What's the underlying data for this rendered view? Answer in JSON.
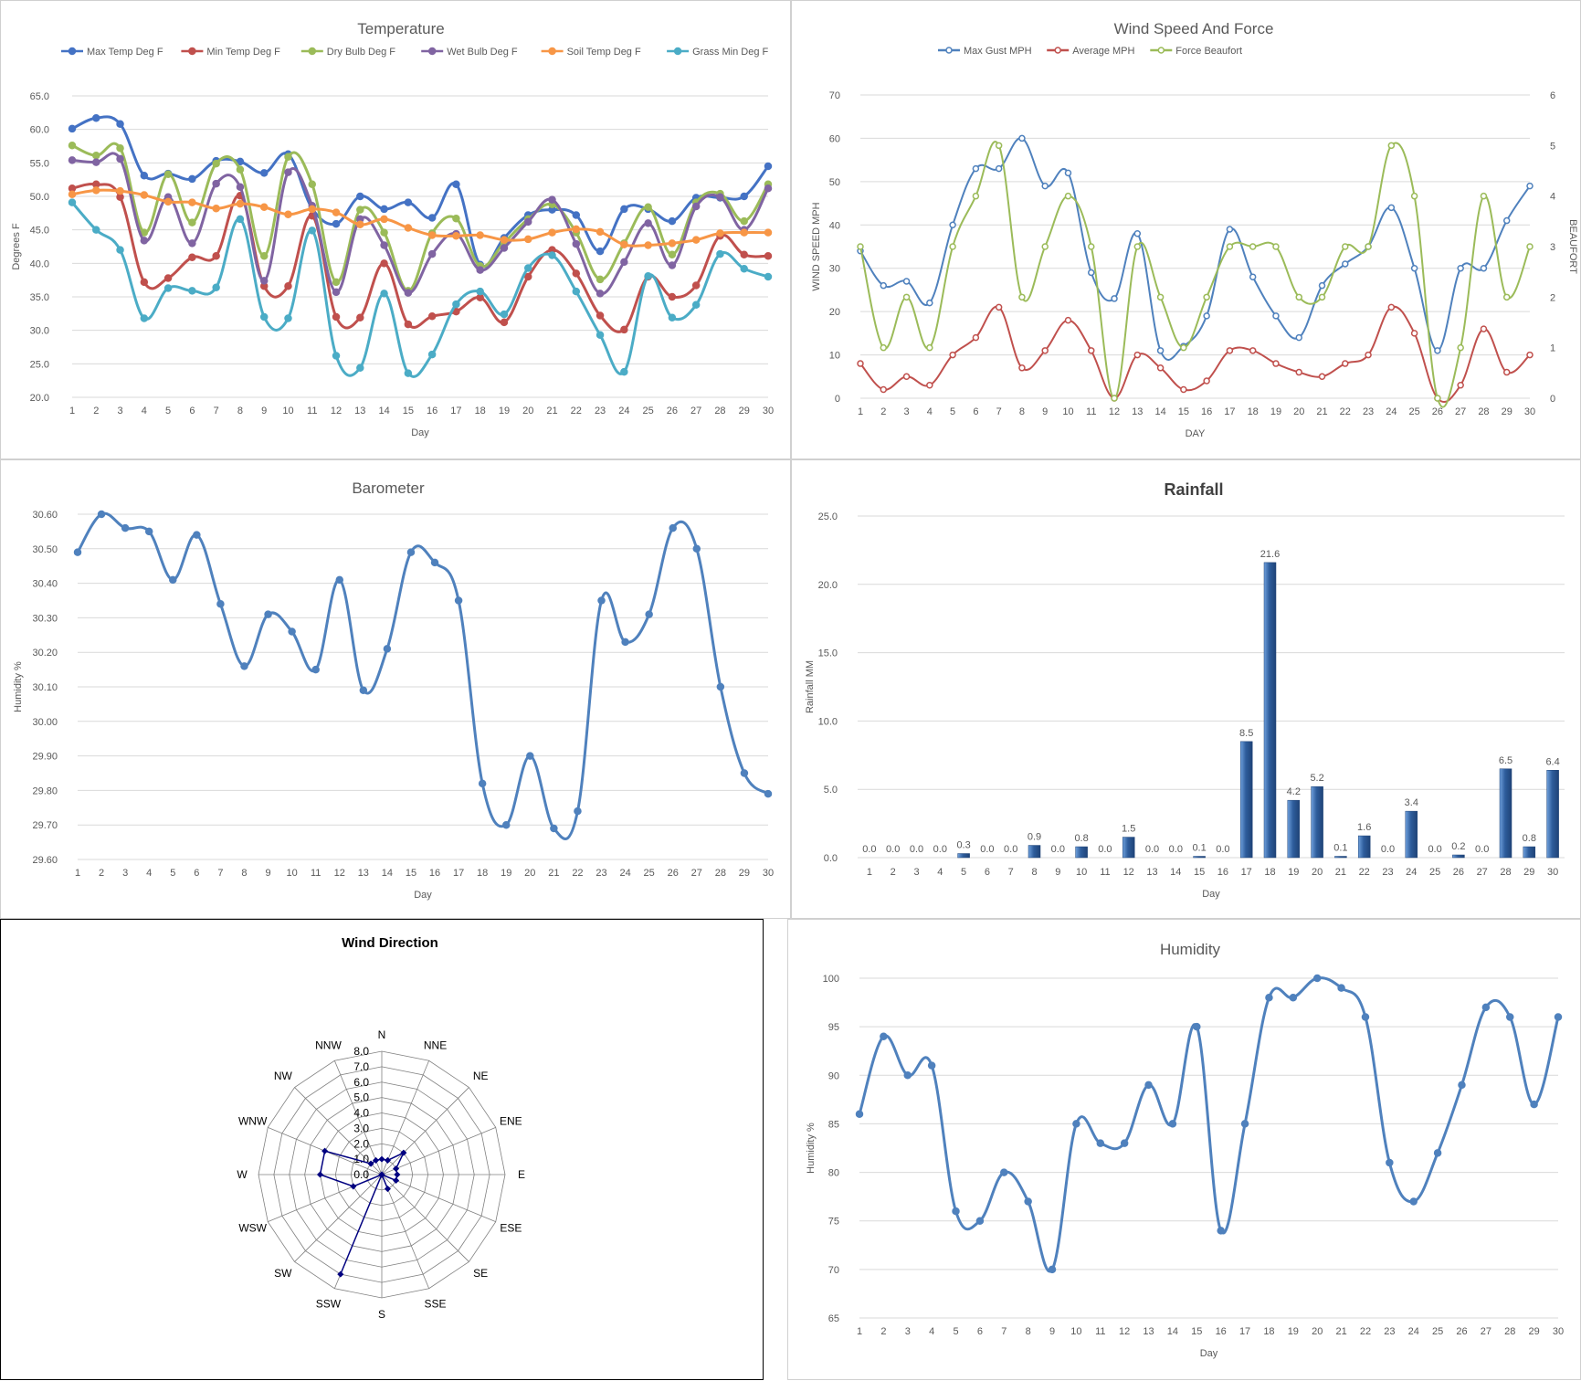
{
  "colors": {
    "max_temp": "#4472C4",
    "min_temp": "#C0504D",
    "dry_bulb": "#9BBB59",
    "wet_bulb": "#8064A2",
    "soil_temp": "#F79646",
    "grass_min": "#4BACC6",
    "line_blue": "#4F81BD",
    "gust": "#4F81BD",
    "avg_mph": "#C0504D",
    "beaufort": "#9BBB59",
    "rain_bar": "#2E5D9C",
    "wind_dir": "#000080",
    "grid": "#d9d9d9",
    "text": "#595959"
  },
  "chart_data": [
    {
      "id": "temperature",
      "type": "line",
      "title": "Temperature",
      "xlabel": "Day",
      "ylabel": "Degrees F",
      "ylim": [
        20,
        65
      ],
      "yticks": [
        "20.0",
        "25.0",
        "30.0",
        "35.0",
        "40.0",
        "45.0",
        "50.0",
        "55.0",
        "60.0",
        "65.0"
      ],
      "x": [
        1,
        2,
        3,
        4,
        5,
        6,
        7,
        8,
        9,
        10,
        11,
        12,
        13,
        14,
        15,
        16,
        17,
        18,
        19,
        20,
        21,
        22,
        23,
        24,
        25,
        26,
        27,
        28,
        29,
        30
      ],
      "legend": "top",
      "series": [
        {
          "name": "Max Temp Deg F",
          "color_key": "max_temp",
          "values": [
            60.1,
            61.7,
            60.8,
            53.1,
            53.4,
            52.6,
            55.3,
            55.2,
            53.5,
            56.3,
            48.2,
            45.9,
            50,
            48.1,
            49.1,
            46.8,
            51.8,
            39.8,
            43.8,
            47.2,
            48,
            47.2,
            41.8,
            48.1,
            48.1,
            46.3,
            49.8,
            49.8,
            50,
            54.5
          ]
        },
        {
          "name": "Min Temp Deg F",
          "color_key": "min_temp",
          "values": [
            51.2,
            51.8,
            49.9,
            37.2,
            37.8,
            40.9,
            41.1,
            50.1,
            36.6,
            36.6,
            47.1,
            32,
            31.9,
            40,
            30.9,
            32.1,
            32.8,
            34.9,
            31.2,
            38,
            42,
            38.5,
            32.2,
            30.1,
            38,
            35,
            36.7,
            44.1,
            41.3,
            41.1
          ]
        },
        {
          "name": "Dry Bulb Deg F",
          "color_key": "dry_bulb",
          "values": [
            57.6,
            56.1,
            57.2,
            44.6,
            53.3,
            46.1,
            54.9,
            54,
            41.1,
            55.9,
            51.8,
            37.2,
            48,
            44.6,
            35.9,
            44.5,
            46.7,
            39.6,
            43.1,
            46.6,
            48.8,
            44.6,
            37.6,
            43,
            48.4,
            41.3,
            49.1,
            50.4,
            46.3,
            51.8
          ]
        },
        {
          "name": "Wet Bulb Deg F",
          "color_key": "wet_bulb",
          "values": [
            55.4,
            55.1,
            55.6,
            43.4,
            49.9,
            43,
            51.9,
            51.4,
            37.4,
            53.6,
            48.6,
            35.7,
            46.6,
            42.7,
            35.6,
            41.4,
            44.4,
            39,
            42.3,
            46.2,
            49.5,
            42.9,
            35.5,
            40.2,
            46,
            39.7,
            48.5,
            49.9,
            45,
            51.2
          ]
        },
        {
          "name": "Soil Temp Deg F",
          "color_key": "soil_temp",
          "values": [
            50.3,
            50.9,
            50.8,
            50.2,
            49.2,
            49.1,
            48.2,
            48.9,
            48.4,
            47.3,
            48.1,
            47.6,
            45.8,
            46.6,
            45.3,
            44.2,
            44.1,
            44.2,
            43.5,
            43.6,
            44.6,
            45.1,
            44.7,
            42.8,
            42.7,
            43,
            43.5,
            44.5,
            44.6,
            44.6
          ]
        },
        {
          "name": "Grass Min Deg F",
          "color_key": "grass_min",
          "values": [
            49.1,
            45,
            42,
            31.8,
            36.3,
            35.9,
            36.4,
            46.6,
            32,
            31.8,
            44.9,
            26.2,
            24.4,
            35.5,
            23.6,
            26.4,
            33.9,
            35.8,
            32.4,
            39.3,
            41.2,
            35.8,
            29.3,
            23.8,
            38.1,
            31.9,
            33.8,
            41.4,
            39.2,
            38
          ]
        }
      ]
    },
    {
      "id": "wind_speed",
      "type": "line",
      "title": "Wind Speed And Force",
      "xlabel": "DAY",
      "ylabel": "WIND SPEED MPH",
      "y2label": "BEAUFORT",
      "ylim": [
        0,
        70
      ],
      "y2lim": [
        0,
        6
      ],
      "yticks": [
        "0",
        "10",
        "20",
        "30",
        "40",
        "50",
        "60",
        "70"
      ],
      "y2ticks": [
        "0",
        "1",
        "2",
        "3",
        "4",
        "5",
        "6"
      ],
      "x": [
        1,
        2,
        3,
        4,
        5,
        6,
        7,
        8,
        9,
        10,
        11,
        12,
        13,
        14,
        15,
        16,
        17,
        18,
        19,
        20,
        21,
        22,
        23,
        24,
        25,
        26,
        27,
        28,
        29,
        30
      ],
      "legend": "top",
      "series": [
        {
          "name": "Max Gust MPH",
          "color_key": "gust",
          "axis": "left",
          "values": [
            34,
            26,
            27,
            22,
            40,
            53,
            53,
            60,
            49,
            52,
            29,
            23,
            38,
            11,
            12,
            19,
            39,
            28,
            19,
            14,
            26,
            31,
            35,
            44,
            30,
            11,
            30,
            30,
            41,
            49
          ]
        },
        {
          "name": "Average MPH",
          "color_key": "avg_mph",
          "axis": "left",
          "values": [
            8,
            2,
            5,
            3,
            10,
            14,
            21,
            7,
            11,
            18,
            11,
            0,
            10,
            7,
            2,
            4,
            11,
            11,
            8,
            6,
            5,
            8,
            10,
            21,
            15,
            0,
            3,
            16,
            6,
            10
          ]
        },
        {
          "name": "Force Beaufort",
          "color_key": "beaufort",
          "axis": "right",
          "values": [
            3,
            1,
            2,
            1,
            3,
            4,
            5,
            2,
            3,
            4,
            3,
            0,
            3,
            2,
            1,
            2,
            3,
            3,
            3,
            2,
            2,
            3,
            3,
            5,
            4,
            0,
            1,
            4,
            2,
            3
          ]
        }
      ]
    },
    {
      "id": "barometer",
      "type": "line",
      "title": "Barometer",
      "xlabel": "Day",
      "ylabel": "Humidity %",
      "ylim": [
        29.6,
        30.6
      ],
      "yticks": [
        "29.60",
        "29.70",
        "29.80",
        "29.90",
        "30.00",
        "30.10",
        "30.20",
        "30.30",
        "30.40",
        "30.50",
        "30.60"
      ],
      "x": [
        1,
        2,
        3,
        4,
        5,
        6,
        7,
        8,
        9,
        10,
        11,
        12,
        13,
        14,
        15,
        16,
        17,
        18,
        19,
        20,
        21,
        22,
        23,
        24,
        25,
        26,
        27,
        28,
        29,
        30
      ],
      "series": [
        {
          "name": "",
          "color_key": "line_blue",
          "values": [
            30.49,
            30.6,
            30.56,
            30.55,
            30.41,
            30.54,
            30.34,
            30.16,
            30.31,
            30.26,
            30.15,
            30.41,
            30.09,
            30.21,
            30.49,
            30.46,
            30.35,
            29.82,
            29.7,
            29.9,
            29.69,
            29.74,
            30.35,
            30.23,
            30.31,
            30.56,
            30.5,
            30.1,
            29.85,
            29.79
          ]
        }
      ]
    },
    {
      "id": "rainfall",
      "type": "bar",
      "title": "Rainfall",
      "xlabel": "Day",
      "ylabel": "Rainfall MM",
      "ylim": [
        0,
        25
      ],
      "yticks": [
        "0.0",
        "5.0",
        "10.0",
        "15.0",
        "20.0",
        "25.0"
      ],
      "categories": [
        "1",
        "2",
        "3",
        "4",
        "5",
        "6",
        "7",
        "8",
        "9",
        "10",
        "11",
        "12",
        "13",
        "14",
        "15",
        "16",
        "17",
        "18",
        "19",
        "20",
        "21",
        "22",
        "23",
        "24",
        "25",
        "26",
        "27",
        "28",
        "29",
        "30"
      ],
      "values": [
        0,
        0,
        0,
        0,
        0.3,
        0,
        0,
        0.9,
        0,
        0.8,
        0,
        1.5,
        0,
        0,
        0.1,
        0,
        8.5,
        21.6,
        4.2,
        5.2,
        0.1,
        1.6,
        0,
        3.4,
        0,
        0.2,
        0,
        6.5,
        0.8,
        6.4
      ],
      "labels": [
        "0.0",
        "0.0",
        "0.0",
        "0.0",
        "0.3",
        "0.0",
        "0.0",
        "0.9",
        "0.0",
        "0.8",
        "0.0",
        "1.5",
        "0.0",
        "0.0",
        "0.1",
        "0.0",
        "8.5",
        "21.6",
        "4.2",
        "5.2",
        "0.1",
        "1.6",
        "0.0",
        "3.4",
        "0.0",
        "0.2",
        "0.0",
        "6.5",
        "0.8",
        "6.4"
      ]
    },
    {
      "id": "wind_direction",
      "type": "radar",
      "title": "Wind Direction",
      "rlim": [
        0,
        8
      ],
      "rticks": [
        "0.0",
        "1.0",
        "2.0",
        "3.0",
        "4.0",
        "5.0",
        "6.0",
        "7.0",
        "8.0"
      ],
      "categories": [
        "N",
        "NNE",
        "NE",
        "ENE",
        "E",
        "ESE",
        "SE",
        "SSE",
        "S",
        "SSW",
        "SW",
        "WSW",
        "W",
        "WNW",
        "NW",
        "NNW"
      ],
      "values": [
        1,
        1,
        2,
        1,
        1,
        1,
        0,
        1,
        0,
        7,
        0,
        2,
        4,
        4,
        1,
        1
      ]
    },
    {
      "id": "humidity",
      "type": "line",
      "title": "Humidity",
      "xlabel": "Day",
      "ylabel": "Humidity %",
      "ylim": [
        65,
        100
      ],
      "yticks": [
        "65",
        "70",
        "75",
        "80",
        "85",
        "90",
        "95",
        "100"
      ],
      "x": [
        1,
        2,
        3,
        4,
        5,
        6,
        7,
        8,
        9,
        10,
        11,
        12,
        13,
        14,
        15,
        16,
        17,
        18,
        19,
        20,
        21,
        22,
        23,
        24,
        25,
        26,
        27,
        28,
        29,
        30
      ],
      "series": [
        {
          "name": "",
          "color_key": "line_blue",
          "values": [
            86,
            94,
            90,
            91,
            76,
            75,
            80,
            77,
            70,
            85,
            83,
            83,
            89,
            85,
            95,
            74,
            85,
            98,
            98,
            100,
            99,
            96,
            81,
            77,
            82,
            89,
            97,
            96,
            87,
            96
          ]
        }
      ]
    }
  ]
}
